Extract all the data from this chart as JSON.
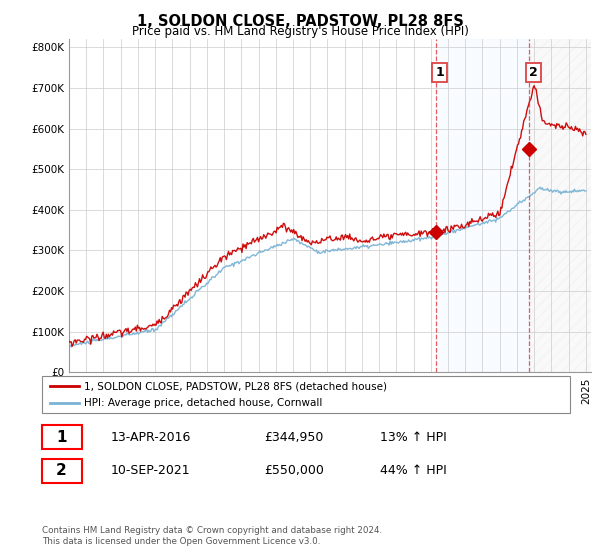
{
  "title": "1, SOLDON CLOSE, PADSTOW, PL28 8FS",
  "subtitle": "Price paid vs. HM Land Registry's House Price Index (HPI)",
  "legend_line1": "1, SOLDON CLOSE, PADSTOW, PL28 8FS (detached house)",
  "legend_line2": "HPI: Average price, detached house, Cornwall",
  "transaction1_date": "13-APR-2016",
  "transaction1_price": "£344,950",
  "transaction1_hpi": "13% ↑ HPI",
  "transaction2_date": "10-SEP-2021",
  "transaction2_price": "£550,000",
  "transaction2_hpi": "44% ↑ HPI",
  "footer": "Contains HM Land Registry data © Crown copyright and database right 2024.\nThis data is licensed under the Open Government Licence v3.0.",
  "hpi_color": "#7ab3d4",
  "price_color": "#cc0000",
  "vline_color": "#dd4444",
  "shade_color": "#ddeeff",
  "ylim": [
    0,
    800000
  ],
  "yticks": [
    0,
    100000,
    200000,
    300000,
    400000,
    500000,
    600000,
    700000,
    800000
  ],
  "sale1_year": 2016.28,
  "sale1_price": 344950,
  "sale2_year": 2021.7,
  "sale2_price": 550000,
  "xmin": 1995,
  "xmax": 2025,
  "background_color": "#ffffff",
  "grid_color": "#cccccc"
}
